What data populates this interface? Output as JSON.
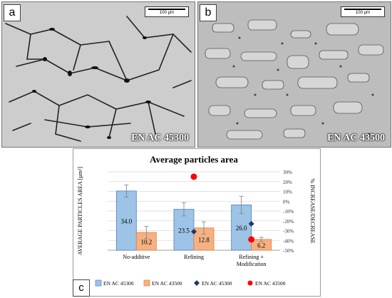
{
  "panels": [
    {
      "letter": "a",
      "scalebar": "100 µm",
      "alloy": "EN AC 45300"
    },
    {
      "letter": "b",
      "scalebar": "100 µm",
      "alloy": "EN AC 43500"
    }
  ],
  "panel_c_letter": "c",
  "chart_data": {
    "type": "bar",
    "title": "Average particles area",
    "ylabel": "AVERAGE PARTICLES AREA [µm²]",
    "y2label": "% INCREASE/DECREASE",
    "categories": [
      "No-additive",
      "Refining",
      [
        "Refining +",
        "Modification"
      ]
    ],
    "ylim": [
      0,
      45
    ],
    "y2lim": [
      -50,
      30
    ],
    "y2ticks": [
      "30%",
      "20%",
      "10%",
      "0%",
      "-10%",
      "-20%",
      "-30%",
      "-40%",
      "-50%"
    ],
    "grid": true,
    "legend_position": "bottom",
    "series": [
      {
        "name": "EN AC 45300",
        "kind": "bar",
        "values": [
          34.0,
          23.5,
          26.0
        ],
        "errors": [
          3.5,
          3.8,
          5.0
        ],
        "labels": [
          "34.0",
          "23.5",
          "26.0"
        ],
        "color": "#9dc3e6",
        "edge": "#4f81bd"
      },
      {
        "name": "EN AC 43500",
        "kind": "bar",
        "values": [
          10.2,
          12.8,
          6.2
        ],
        "errors": [
          3.5,
          3.5,
          1.2
        ],
        "labels": [
          "10.2",
          "12.8",
          "6.2"
        ],
        "color": "#f4b183",
        "edge": "#ed7d31"
      },
      {
        "name": "EN AC 45300",
        "kind": "marker",
        "marker": "diamond",
        "axis": "secondary",
        "values": [
          null,
          -31,
          -23
        ],
        "color": "#1f3864"
      },
      {
        "name": "EN AC 43500",
        "kind": "marker",
        "marker": "circle",
        "axis": "secondary",
        "values": [
          null,
          25,
          -39
        ],
        "color": "#ff0000"
      }
    ]
  }
}
